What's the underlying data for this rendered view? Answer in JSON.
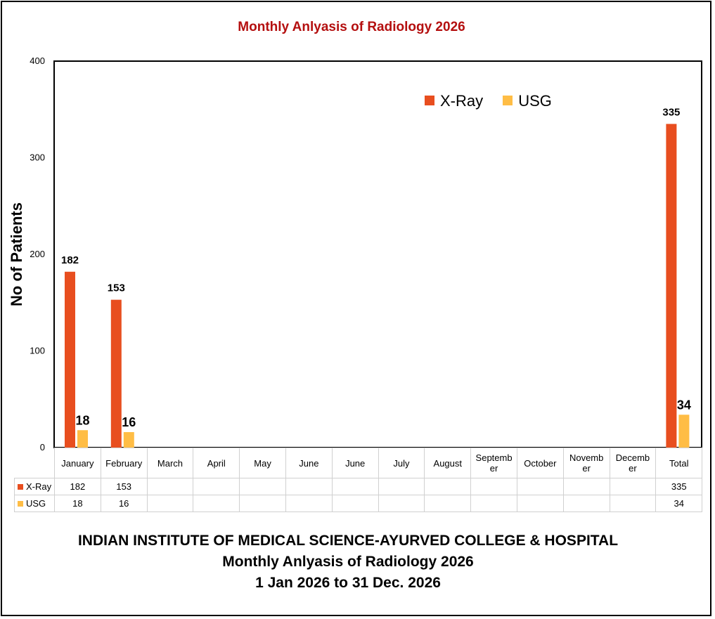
{
  "chart_data": {
    "type": "bar",
    "title": "Monthly Anlyasis of Radiology  2026",
    "ylabel": "No of Patients",
    "xlabel": "",
    "ylim": [
      0,
      400
    ],
    "yticks": [
      0,
      100,
      200,
      300,
      400
    ],
    "categories": [
      "January",
      "February",
      "March",
      "April",
      "May",
      "June",
      "June",
      "July",
      "August",
      "September",
      "October",
      "November",
      "December",
      "Total"
    ],
    "categories_display": [
      "January",
      "February",
      "March",
      "April",
      "May",
      "June",
      "June",
      "July",
      "August",
      "Septemb\ner",
      "October",
      "Novemb\ner",
      "Decemb\ner",
      "Total"
    ],
    "series": [
      {
        "name": "X-Ray",
        "color": "#e84e1f",
        "values": [
          182,
          153,
          null,
          null,
          null,
          null,
          null,
          null,
          null,
          null,
          null,
          null,
          null,
          335
        ]
      },
      {
        "name": "USG",
        "color": "#ffbd45",
        "values": [
          18,
          16,
          null,
          null,
          null,
          null,
          null,
          null,
          null,
          null,
          null,
          null,
          null,
          34
        ]
      }
    ],
    "legend": "top-right",
    "grid": false
  },
  "footer": {
    "line1": "INDIAN INSTITUTE OF MEDICAL SCIENCE-AYURVED COLLEGE & HOSPITAL",
    "line2": "Monthly Anlyasis of Radiology  2026",
    "line3": "1 Jan 2026 to 31 Dec. 2026"
  }
}
